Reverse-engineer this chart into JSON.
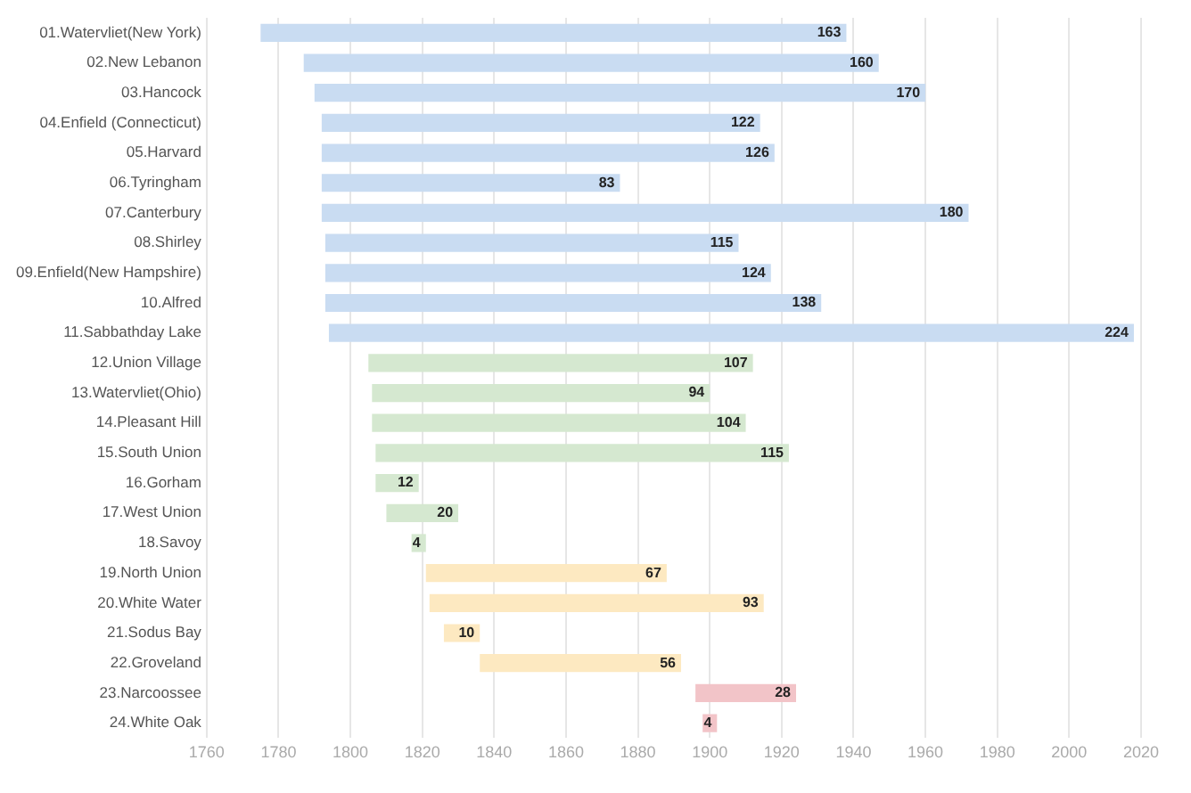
{
  "chart_data": {
    "type": "bar",
    "orientation": "horizontal",
    "categories": [
      "01.Watervliet(New York)",
      "02.New Lebanon",
      "03.Hancock",
      "04.Enfield (Connecticut)",
      "05.Harvard",
      "06.Tyringham",
      "07.Canterbury",
      "08.Shirley",
      "09.Enfield(New Hampshire)",
      "10.Alfred",
      "11.Sabbathday Lake",
      "12.Union Village",
      "13.Watervliet(Ohio)",
      "14.Pleasant Hill",
      "15.South Union",
      "16.Gorham",
      "17.West Union",
      "18.Savoy",
      "19.North Union",
      "20.White Water",
      "21.Sodus Bay",
      "22.Groveland",
      "23.Narcoossee",
      "24.White Oak"
    ],
    "base": [
      1775,
      1787,
      1790,
      1792,
      1792,
      1792,
      1792,
      1793,
      1793,
      1793,
      1794,
      1805,
      1806,
      1806,
      1807,
      1807,
      1810,
      1817,
      1821,
      1822,
      1826,
      1836,
      1896,
      1898
    ],
    "values": [
      163,
      160,
      170,
      122,
      126,
      83,
      180,
      115,
      124,
      138,
      224,
      107,
      94,
      104,
      115,
      12,
      20,
      4,
      67,
      93,
      10,
      56,
      28,
      4
    ],
    "colors": [
      "#c9dcf2",
      "#c9dcf2",
      "#c9dcf2",
      "#c9dcf2",
      "#c9dcf2",
      "#c9dcf2",
      "#c9dcf2",
      "#c9dcf2",
      "#c9dcf2",
      "#c9dcf2",
      "#c9dcf2",
      "#d5e8d0",
      "#d5e8d0",
      "#d5e8d0",
      "#d5e8d0",
      "#d5e8d0",
      "#d5e8d0",
      "#d5e8d0",
      "#fde9c1",
      "#fde9c1",
      "#fde9c1",
      "#fde9c1",
      "#f2c4c8",
      "#f2c4c8"
    ],
    "xlim": [
      1760,
      2020
    ],
    "xticks": [
      1760,
      1780,
      1800,
      1820,
      1840,
      1860,
      1880,
      1900,
      1920,
      1940,
      1960,
      1980,
      2000,
      2020
    ],
    "grid": "x",
    "legend": false,
    "data_labels": true
  }
}
